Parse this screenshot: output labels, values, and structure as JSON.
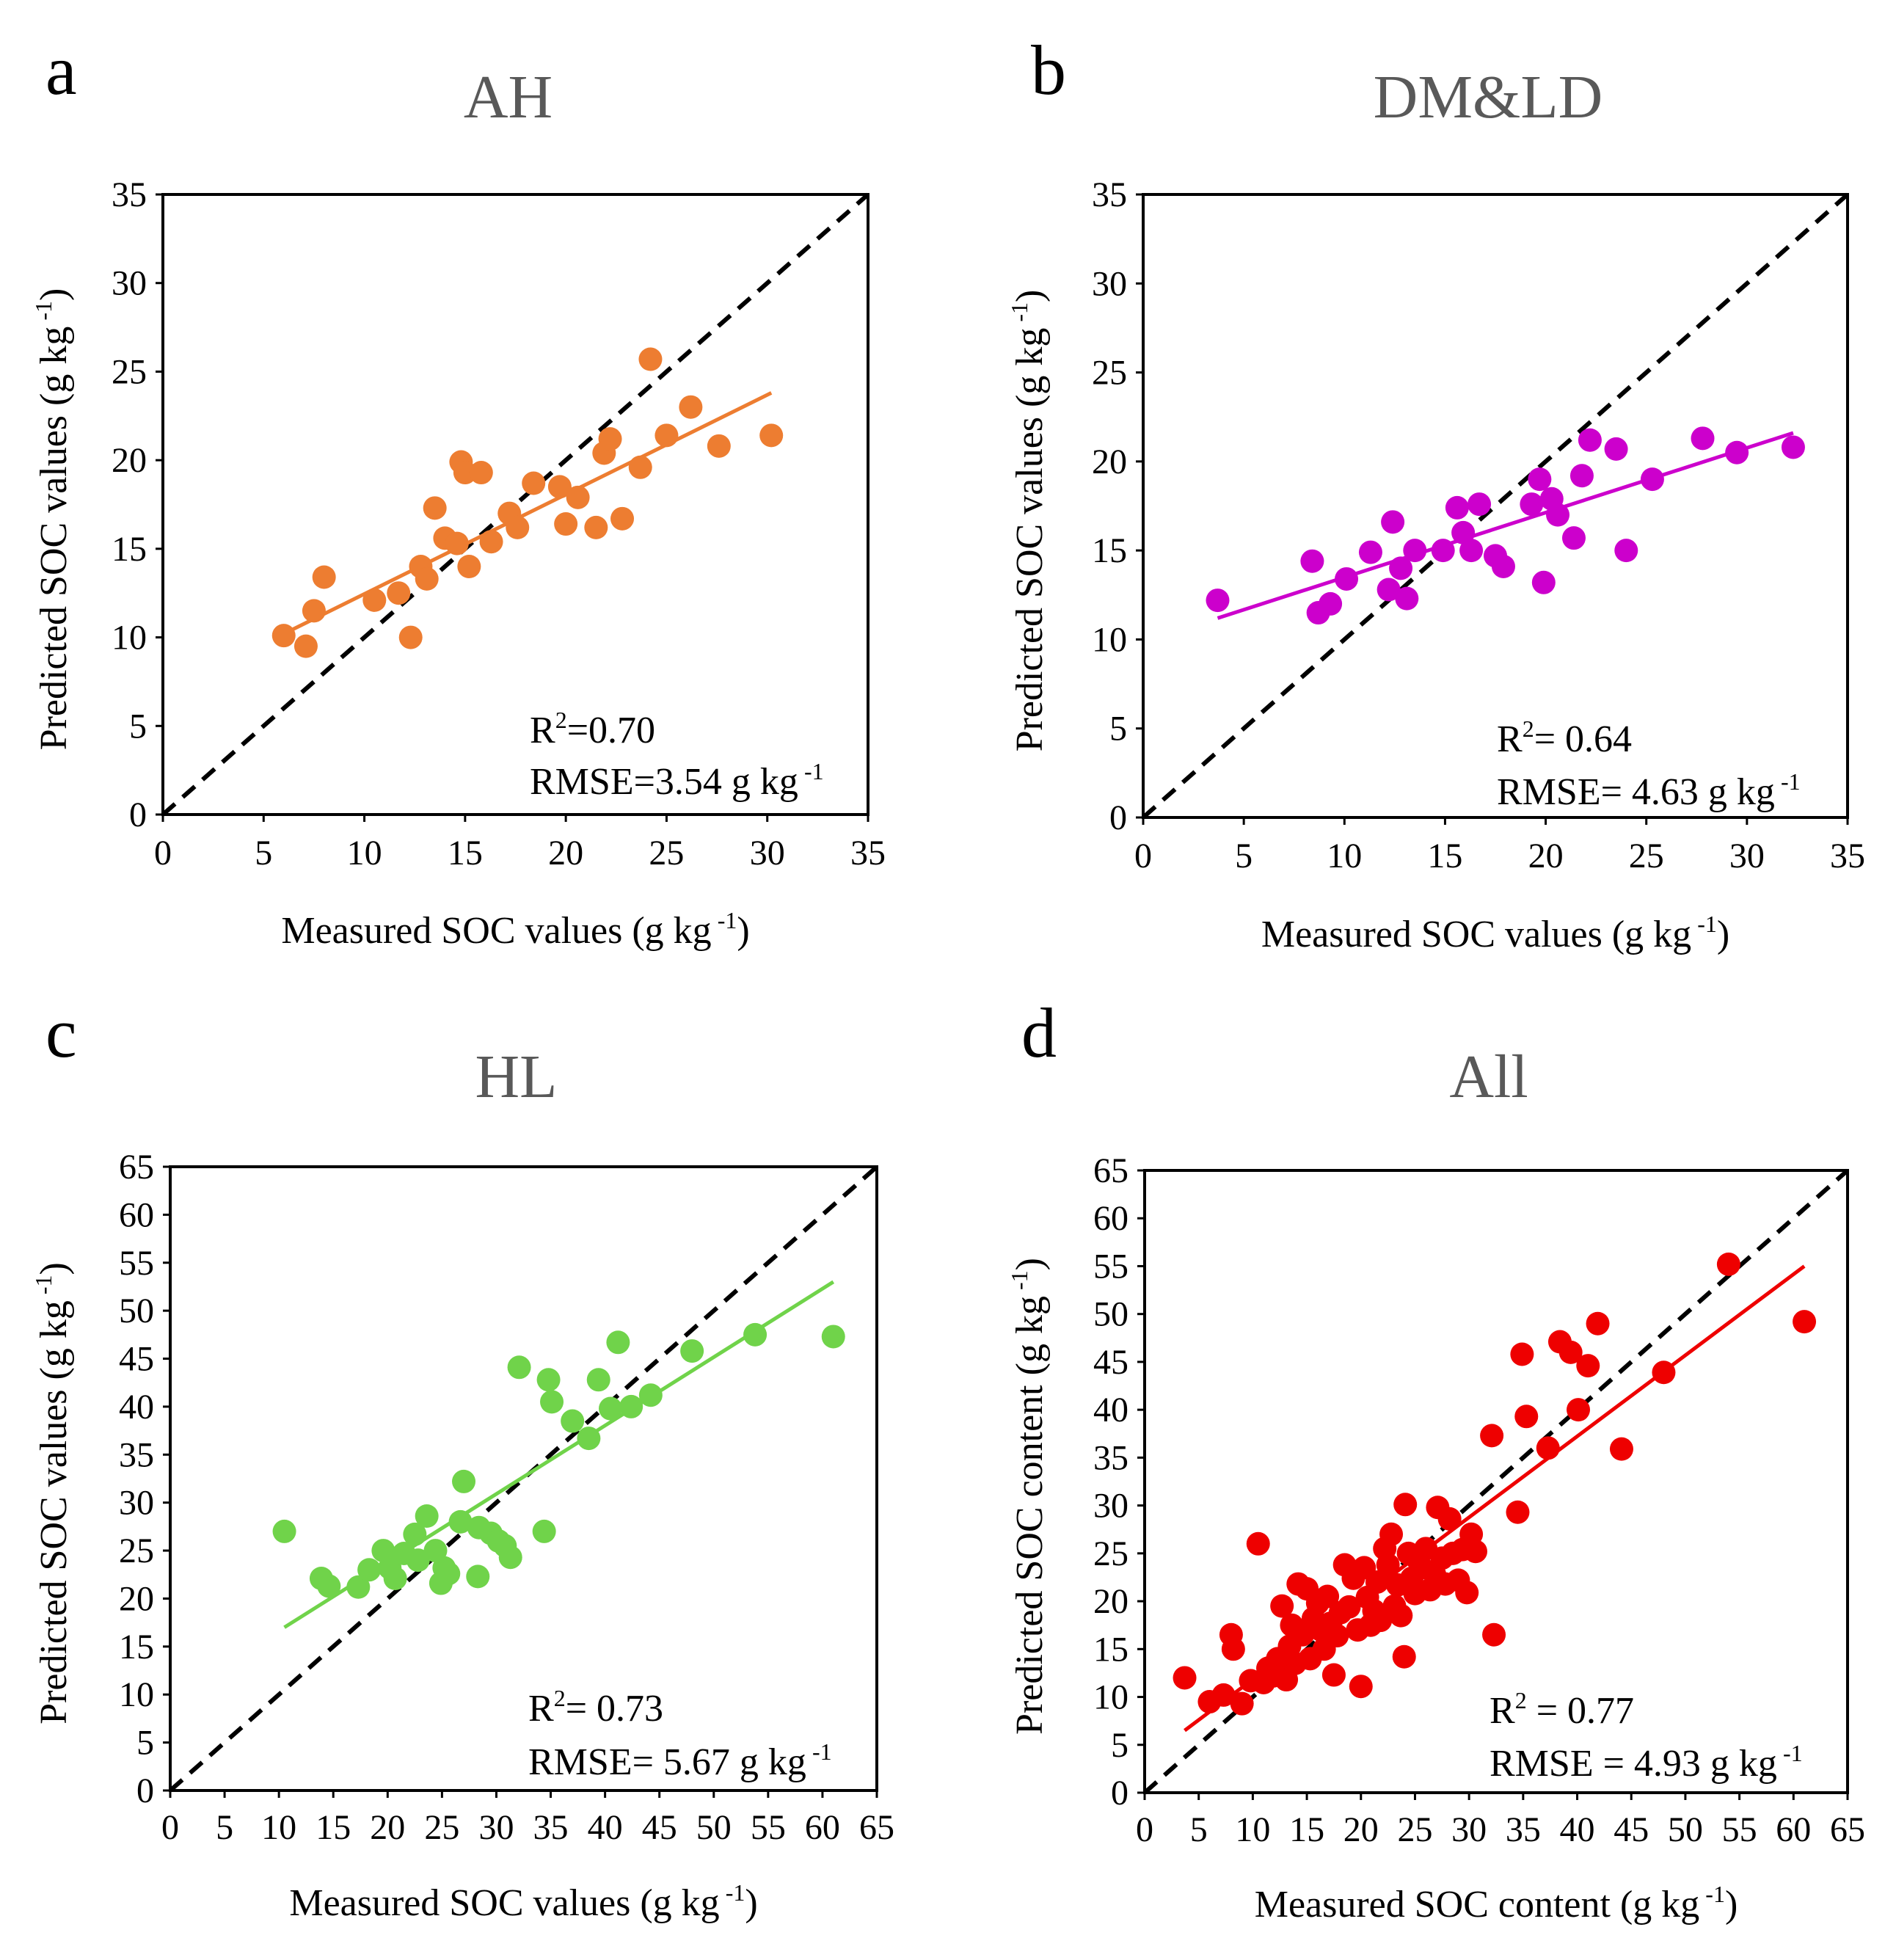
{
  "chart_data": [
    {
      "type": "scatter",
      "panel": "a",
      "title": "AH",
      "xlabel": "Measured SOC values (g kg",
      "xlabel_sup": "-1",
      "xlabel_end": ")",
      "ylabel": "Predicted SOC values (g kg",
      "ylabel_sup": "-1",
      "ylabel_end": ")",
      "xlim": [
        0,
        35
      ],
      "ylim": [
        0,
        35
      ],
      "ticks": [
        "0",
        "5",
        "10",
        "15",
        "20",
        "25",
        "30",
        "35"
      ],
      "tick_values": [
        0,
        5,
        10,
        15,
        20,
        25,
        30,
        35
      ],
      "color": "#ED7D31",
      "r2_label": "R",
      "r2_sup": "2",
      "r2_value": "=0.70",
      "rmse_text": "RMSE=3.54 g kg",
      "rmse_sup": "-1",
      "fit_line": [
        [
          6,
          10.2
        ],
        [
          30.2,
          23.8
        ]
      ],
      "points": [
        [
          6.0,
          10.1
        ],
        [
          7.1,
          9.5
        ],
        [
          7.5,
          11.5
        ],
        [
          8.0,
          13.4
        ],
        [
          10.5,
          12.1
        ],
        [
          11.7,
          12.5
        ],
        [
          12.3,
          10.0
        ],
        [
          12.8,
          14.0
        ],
        [
          13.1,
          13.3
        ],
        [
          13.5,
          17.3
        ],
        [
          14.0,
          15.6
        ],
        [
          14.6,
          15.3
        ],
        [
          14.8,
          19.9
        ],
        [
          15.0,
          19.3
        ],
        [
          15.2,
          14.0
        ],
        [
          15.8,
          19.3
        ],
        [
          16.3,
          15.4
        ],
        [
          17.2,
          17.0
        ],
        [
          17.6,
          16.2
        ],
        [
          18.4,
          18.7
        ],
        [
          19.7,
          18.5
        ],
        [
          20.0,
          16.4
        ],
        [
          20.6,
          17.9
        ],
        [
          21.5,
          16.2
        ],
        [
          21.9,
          20.4
        ],
        [
          22.2,
          21.2
        ],
        [
          22.8,
          16.7
        ],
        [
          23.7,
          19.6
        ],
        [
          24.2,
          25.7
        ],
        [
          25.0,
          21.4
        ],
        [
          26.2,
          23.0
        ],
        [
          27.6,
          20.8
        ],
        [
          30.2,
          21.4
        ]
      ]
    },
    {
      "type": "scatter",
      "panel": "b",
      "title": "DM&LD",
      "xlabel": "Measured SOC values (g kg",
      "xlabel_sup": "-1",
      "xlabel_end": ")",
      "ylabel": "Predicted SOC values (g kg",
      "ylabel_sup": "-1",
      "ylabel_end": ")",
      "xlim": [
        0,
        35
      ],
      "ylim": [
        0,
        35
      ],
      "ticks": [
        "0",
        "5",
        "10",
        "15",
        "20",
        "25",
        "30",
        "35"
      ],
      "tick_values": [
        0,
        5,
        10,
        15,
        20,
        25,
        30,
        35
      ],
      "color": "#CC00CC",
      "r2_label": "R",
      "r2_sup": "2",
      "r2_value": "= 0.64",
      "rmse_text": "RMSE= 4.63 g kg",
      "rmse_sup": "-1",
      "fit_line": [
        [
          3.7,
          11.2
        ],
        [
          32.3,
          21.6
        ]
      ],
      "points": [
        [
          3.7,
          12.2
        ],
        [
          8.4,
          14.4
        ],
        [
          8.7,
          11.5
        ],
        [
          9.3,
          12.0
        ],
        [
          10.1,
          13.4
        ],
        [
          11.3,
          14.9
        ],
        [
          12.2,
          12.8
        ],
        [
          12.4,
          16.6
        ],
        [
          12.8,
          14.0
        ],
        [
          13.1,
          12.3
        ],
        [
          13.5,
          15.0
        ],
        [
          14.9,
          15.0
        ],
        [
          15.6,
          17.4
        ],
        [
          15.9,
          16.0
        ],
        [
          16.3,
          15.0
        ],
        [
          16.7,
          17.6
        ],
        [
          17.5,
          14.7
        ],
        [
          17.9,
          14.1
        ],
        [
          19.3,
          17.6
        ],
        [
          19.7,
          19.0
        ],
        [
          19.9,
          13.2
        ],
        [
          20.3,
          17.9
        ],
        [
          20.6,
          17.0
        ],
        [
          21.4,
          15.7
        ],
        [
          21.8,
          19.2
        ],
        [
          22.2,
          21.2
        ],
        [
          23.5,
          20.7
        ],
        [
          24.0,
          15.0
        ],
        [
          25.3,
          19.0
        ],
        [
          27.8,
          21.3
        ],
        [
          29.5,
          20.5
        ],
        [
          32.3,
          20.8
        ]
      ]
    },
    {
      "type": "scatter",
      "panel": "c",
      "title": "HL",
      "xlabel": "Measured SOC values (g kg",
      "xlabel_sup": "-1",
      "xlabel_end": ")",
      "ylabel": "Predicted SOC values (g kg",
      "ylabel_sup": "-1",
      "ylabel_end": ")",
      "xlim": [
        0,
        65
      ],
      "ylim": [
        0,
        65
      ],
      "ticks": [
        "0",
        "5",
        "10",
        "15",
        "20",
        "25",
        "30",
        "35",
        "40",
        "45",
        "50",
        "55",
        "60",
        "65"
      ],
      "tick_values": [
        0,
        5,
        10,
        15,
        20,
        25,
        30,
        35,
        40,
        45,
        50,
        55,
        60,
        65
      ],
      "color": "#70D34A",
      "r2_label": "R",
      "r2_sup": "2",
      "r2_value": "= 0.73",
      "rmse_text": "RMSE= 5.67 g kg",
      "rmse_sup": "-1",
      "fit_line": [
        [
          10.5,
          17.0
        ],
        [
          61.0,
          53.0
        ]
      ],
      "points": [
        [
          10.5,
          27.0
        ],
        [
          13.9,
          22.1
        ],
        [
          14.6,
          21.3
        ],
        [
          17.3,
          21.2
        ],
        [
          18.3,
          23.0
        ],
        [
          19.6,
          25.0
        ],
        [
          20.2,
          23.2
        ],
        [
          20.7,
          22.1
        ],
        [
          21.5,
          24.7
        ],
        [
          22.5,
          26.7
        ],
        [
          22.8,
          24.0
        ],
        [
          23.6,
          28.6
        ],
        [
          24.4,
          25.0
        ],
        [
          24.9,
          21.6
        ],
        [
          25.2,
          23.2
        ],
        [
          25.6,
          22.6
        ],
        [
          26.7,
          28.0
        ],
        [
          27.0,
          32.2
        ],
        [
          28.3,
          22.3
        ],
        [
          28.4,
          27.4
        ],
        [
          29.5,
          26.8
        ],
        [
          30.2,
          26.0
        ],
        [
          30.8,
          25.5
        ],
        [
          31.3,
          24.3
        ],
        [
          32.1,
          44.1
        ],
        [
          34.4,
          27.0
        ],
        [
          34.8,
          42.8
        ],
        [
          35.1,
          40.5
        ],
        [
          37.0,
          38.5
        ],
        [
          38.5,
          36.7
        ],
        [
          39.4,
          42.8
        ],
        [
          40.5,
          39.8
        ],
        [
          41.2,
          46.7
        ],
        [
          42.4,
          40.0
        ],
        [
          44.2,
          41.2
        ],
        [
          48.0,
          45.8
        ],
        [
          53.8,
          47.5
        ],
        [
          61.0,
          47.3
        ]
      ]
    },
    {
      "type": "scatter",
      "panel": "d",
      "title": "All",
      "xlabel": "Measured SOC content (g kg",
      "xlabel_sup": "-1",
      "xlabel_end": ")",
      "ylabel": "Predicted SOC content (g kg",
      "ylabel_sup": "-1",
      "ylabel_end": ")",
      "xlim": [
        0,
        65
      ],
      "ylim": [
        0,
        65
      ],
      "ticks": [
        "0",
        "5",
        "10",
        "15",
        "20",
        "25",
        "30",
        "35",
        "40",
        "45",
        "50",
        "55",
        "60",
        "65"
      ],
      "tick_values": [
        0,
        5,
        10,
        15,
        20,
        25,
        30,
        35,
        40,
        45,
        50,
        55,
        60,
        65
      ],
      "color": "#EE0000",
      "r2_label": "R",
      "r2_sup": "2",
      "r2_value": " = 0.77",
      "rmse_text": "RMSE = 4.93 g kg",
      "rmse_sup": "-1",
      "fit_line": [
        [
          3.7,
          6.5
        ],
        [
          61.0,
          55.0
        ]
      ],
      "points": [
        [
          3.7,
          12.0
        ],
        [
          6.0,
          9.5
        ],
        [
          7.3,
          10.2
        ],
        [
          8.0,
          16.5
        ],
        [
          8.2,
          15.0
        ],
        [
          9.0,
          9.3
        ],
        [
          9.8,
          11.7
        ],
        [
          10.5,
          26.0
        ],
        [
          11.0,
          11.5
        ],
        [
          11.4,
          13.0
        ],
        [
          11.9,
          12.2
        ],
        [
          12.3,
          14.0
        ],
        [
          12.7,
          19.5
        ],
        [
          13.1,
          11.8
        ],
        [
          13.4,
          15.3
        ],
        [
          13.6,
          17.5
        ],
        [
          13.9,
          13.5
        ],
        [
          14.2,
          21.8
        ],
        [
          14.6,
          16.5
        ],
        [
          15.0,
          21.3
        ],
        [
          15.3,
          14.0
        ],
        [
          15.6,
          18.2
        ],
        [
          16.0,
          19.8
        ],
        [
          16.3,
          17.0
        ],
        [
          16.6,
          15.0
        ],
        [
          16.9,
          20.5
        ],
        [
          17.2,
          17.7
        ],
        [
          17.5,
          12.3
        ],
        [
          17.8,
          16.4
        ],
        [
          18.1,
          18.8
        ],
        [
          18.5,
          23.8
        ],
        [
          18.9,
          19.4
        ],
        [
          19.3,
          22.4
        ],
        [
          19.7,
          17.0
        ],
        [
          20.0,
          11.1
        ],
        [
          20.3,
          23.5
        ],
        [
          20.6,
          20.4
        ],
        [
          20.9,
          17.5
        ],
        [
          21.2,
          19.0
        ],
        [
          21.5,
          22.0
        ],
        [
          21.8,
          18.0
        ],
        [
          22.2,
          25.5
        ],
        [
          22.5,
          23.8
        ],
        [
          22.8,
          27.0
        ],
        [
          23.1,
          19.5
        ],
        [
          23.4,
          21.7
        ],
        [
          23.7,
          18.5
        ],
        [
          24.0,
          14.2
        ],
        [
          24.1,
          30.1
        ],
        [
          24.4,
          25.0
        ],
        [
          24.7,
          22.4
        ],
        [
          25.0,
          20.8
        ],
        [
          25.3,
          24.3
        ],
        [
          25.6,
          23.5
        ],
        [
          26.0,
          25.5
        ],
        [
          26.4,
          21.2
        ],
        [
          26.8,
          22.8
        ],
        [
          27.1,
          29.8
        ],
        [
          27.5,
          24.5
        ],
        [
          27.8,
          21.8
        ],
        [
          28.2,
          28.6
        ],
        [
          28.5,
          25.0
        ],
        [
          29.0,
          22.2
        ],
        [
          29.4,
          25.4
        ],
        [
          29.8,
          20.9
        ],
        [
          30.2,
          27.0
        ],
        [
          30.6,
          25.2
        ],
        [
          32.1,
          37.3
        ],
        [
          32.3,
          16.5
        ],
        [
          34.5,
          29.3
        ],
        [
          34.9,
          45.8
        ],
        [
          35.3,
          39.3
        ],
        [
          37.3,
          36.0
        ],
        [
          38.4,
          47.1
        ],
        [
          39.4,
          46.0
        ],
        [
          40.1,
          40.0
        ],
        [
          41.0,
          44.6
        ],
        [
          41.9,
          49.0
        ],
        [
          44.1,
          35.9
        ],
        [
          48.0,
          43.9
        ],
        [
          54.0,
          55.2
        ],
        [
          61.0,
          49.2
        ]
      ]
    }
  ]
}
